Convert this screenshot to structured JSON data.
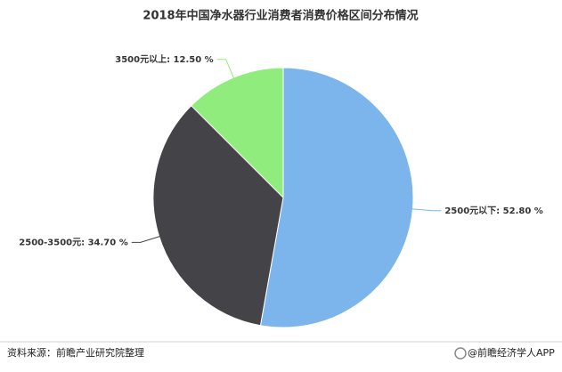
{
  "chart_data": {
    "type": "pie",
    "title": "2018年中国净水器行业消费者消费价格区间分布情况",
    "values": [
      52.8,
      34.7,
      12.5
    ],
    "value_labels": [
      "2500元以下: 52.80 %",
      "2500-3500元: 34.70 %",
      "3500元以上: 12.50 %"
    ],
    "colors": [
      "#7cb5ec",
      "#434348",
      "#90ed7d"
    ]
  },
  "footer": {
    "source": "资料来源：前瞻产业研究院整理",
    "brand": "@前瞻经济学人APP"
  }
}
